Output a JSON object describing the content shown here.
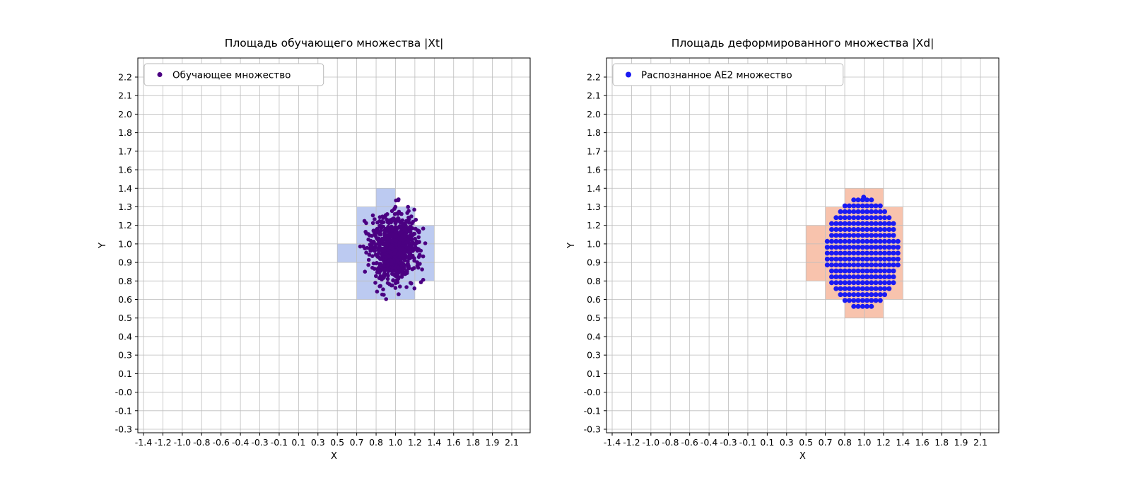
{
  "page": {
    "background": "#ffffff"
  },
  "chart_data": [
    {
      "type": "scatter",
      "title": "Площадь обучающего множества |Xt|",
      "xlabel": "X",
      "ylabel": "Y",
      "x_ticks": [
        "-1.4",
        "-1.2",
        "-1.0",
        "-0.8",
        "-0.6",
        "-0.4",
        "-0.3",
        "-0.1",
        "0.1",
        "0.3",
        "0.5",
        "0.7",
        "0.8",
        "1.0",
        "1.2",
        "1.4",
        "1.6",
        "1.8",
        "1.9",
        "2.1"
      ],
      "y_ticks": [
        "-0.3",
        "-0.1",
        "-0.0",
        "0.1",
        "0.3",
        "0.4",
        "0.5",
        "0.6",
        "0.8",
        "0.9",
        "1.0",
        "1.2",
        "1.3",
        "1.4",
        "1.6",
        "1.7",
        "1.8",
        "2.0",
        "2.1",
        "2.2"
      ],
      "x_range": [
        -1.4,
        2.1
      ],
      "y_range": [
        -0.3,
        2.2
      ],
      "grid": true,
      "legend": {
        "position": "upper left",
        "label": "Обучающее множество"
      },
      "point_color": "#4b0082",
      "point_radius": 2.8,
      "region_color": "#bccaf1",
      "region_cells": [
        [
          10,
          9
        ],
        [
          11,
          7
        ],
        [
          11,
          8
        ],
        [
          11,
          9
        ],
        [
          11,
          10
        ],
        [
          11,
          11
        ],
        [
          12,
          7
        ],
        [
          12,
          8
        ],
        [
          12,
          9
        ],
        [
          12,
          10
        ],
        [
          12,
          11
        ],
        [
          12,
          12
        ],
        [
          13,
          7
        ],
        [
          13,
          8
        ],
        [
          13,
          9
        ],
        [
          13,
          10
        ],
        [
          13,
          11
        ],
        [
          14,
          8
        ],
        [
          14,
          9
        ],
        [
          14,
          10
        ]
      ],
      "points_model": {
        "kind": "gaussian",
        "center": [
          0.99,
          0.99
        ],
        "std": [
          0.105,
          0.115
        ],
        "count": 900
      },
      "extra_points": []
    },
    {
      "type": "scatter",
      "title": "Площадь деформированного множества |Xd|",
      "xlabel": "X",
      "ylabel": "Y",
      "x_ticks": [
        "-1.4",
        "-1.2",
        "-1.0",
        "-0.8",
        "-0.6",
        "-0.4",
        "-0.3",
        "-0.1",
        "0.1",
        "0.3",
        "0.5",
        "0.7",
        "0.8",
        "1.0",
        "1.2",
        "1.4",
        "1.6",
        "1.8",
        "1.9",
        "2.1"
      ],
      "y_ticks": [
        "-0.3",
        "-0.1",
        "-0.0",
        "0.1",
        "0.3",
        "0.4",
        "0.5",
        "0.6",
        "0.8",
        "0.9",
        "1.0",
        "1.2",
        "1.3",
        "1.4",
        "1.6",
        "1.7",
        "1.8",
        "2.0",
        "2.1",
        "2.2"
      ],
      "x_range": [
        -1.4,
        2.1
      ],
      "y_range": [
        -0.3,
        2.2
      ],
      "grid": true,
      "legend": {
        "position": "upper left",
        "label": "Распознанное AE2 множество"
      },
      "point_color": "#1a1af2",
      "point_radius": 3.5,
      "region_color": "#f8c3ad",
      "region_cells": [
        [
          10,
          8
        ],
        [
          10,
          9
        ],
        [
          10,
          10
        ],
        [
          11,
          7
        ],
        [
          11,
          8
        ],
        [
          11,
          9
        ],
        [
          11,
          10
        ],
        [
          11,
          11
        ],
        [
          12,
          6
        ],
        [
          12,
          7
        ],
        [
          12,
          8
        ],
        [
          12,
          9
        ],
        [
          12,
          10
        ],
        [
          12,
          11
        ],
        [
          12,
          12
        ],
        [
          13,
          6
        ],
        [
          13,
          7
        ],
        [
          13,
          8
        ],
        [
          13,
          9
        ],
        [
          13,
          10
        ],
        [
          13,
          11
        ],
        [
          13,
          12
        ],
        [
          14,
          7
        ],
        [
          14,
          8
        ],
        [
          14,
          9
        ],
        [
          14,
          10
        ],
        [
          14,
          11
        ]
      ],
      "points_model": {
        "kind": "lattice",
        "center": [
          0.98,
          0.95
        ],
        "rx": 0.35,
        "ry": 0.39,
        "dx": 0.042,
        "dy": 0.042
      },
      "extra_points": [
        [
          0.99,
          1.347
        ]
      ]
    }
  ]
}
